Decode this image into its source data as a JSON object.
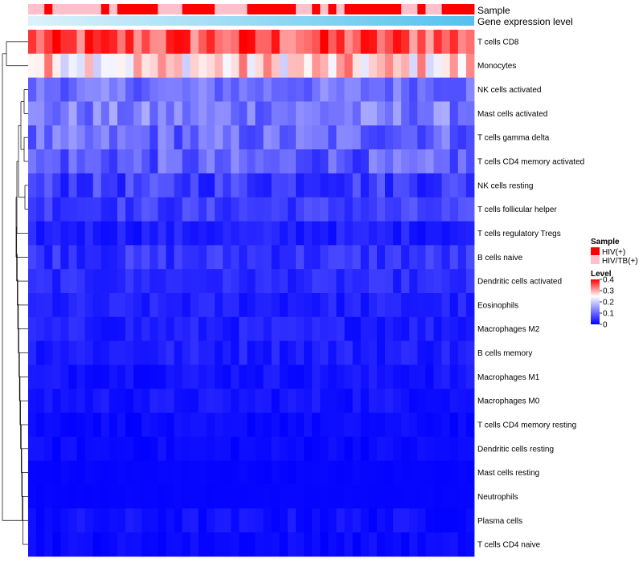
{
  "chart_data": {
    "type": "heatmap",
    "title": "",
    "annotations": {
      "sample_label": "Sample",
      "gene_label": "Gene expression level"
    },
    "sample_legend": {
      "title": "Sample",
      "entries": [
        {
          "name": "HIV(+)",
          "color": "#ff0000"
        },
        {
          "name": "HIV/TB(+)",
          "color": "#ffc0cb"
        }
      ]
    },
    "level_legend": {
      "title": "Level",
      "ticks": [
        "0.4",
        "0.3",
        "0.2",
        "0.1",
        "0"
      ],
      "tick_values": [
        0.4,
        0.3,
        0.2,
        0.1,
        0
      ],
      "range": [
        0,
        0.4
      ],
      "colors": [
        "#0000ff",
        "#ffffff",
        "#ff0000"
      ],
      "mid_value": 0.25
    },
    "sample_groups": [
      1,
      1,
      0,
      1,
      1,
      1,
      1,
      1,
      1,
      0,
      1,
      0,
      0,
      0,
      0,
      0,
      1,
      1,
      1,
      0,
      0,
      0,
      0,
      1,
      1,
      1,
      1,
      0,
      0,
      0,
      0,
      0,
      0,
      1,
      1,
      0,
      1,
      0,
      1,
      0,
      0,
      0,
      0,
      0,
      0,
      0,
      1,
      1,
      0,
      1,
      1,
      0,
      0,
      0,
      0
    ],
    "rows": [
      "T cells CD8",
      "Monocytes",
      "NK cells activated",
      "Mast cells activated",
      "T cells gamma delta",
      "T cells CD4 memory activated",
      "NK cells resting",
      "T cells follicular helper",
      "T cells regulatory  Tregs",
      "B cells naive",
      "Dendritic cells activated",
      "Eosinophils",
      "Macrophages M2",
      "B cells memory",
      "Macrophages M1",
      "Macrophages M0",
      "T cells CD4 memory resting",
      "Dendritic cells resting",
      "Mast cells resting",
      "Neutrophils",
      "Plasma cells",
      "T cells CD4 naive"
    ],
    "row_means": [
      0.35,
      0.27,
      0.11,
      0.12,
      0.1,
      0.09,
      0.06,
      0.06,
      0.03,
      0.05,
      0.04,
      0.03,
      0.03,
      0.03,
      0.02,
      0.02,
      0.01,
      0.01,
      0.005,
      0.005,
      0.015,
      0.01
    ],
    "row_spread": [
      0.06,
      0.07,
      0.04,
      0.05,
      0.05,
      0.05,
      0.04,
      0.03,
      0.02,
      0.03,
      0.02,
      0.02,
      0.02,
      0.02,
      0.015,
      0.015,
      0.01,
      0.01,
      0.003,
      0.002,
      0.015,
      0.01
    ],
    "n_samples": 55
  }
}
